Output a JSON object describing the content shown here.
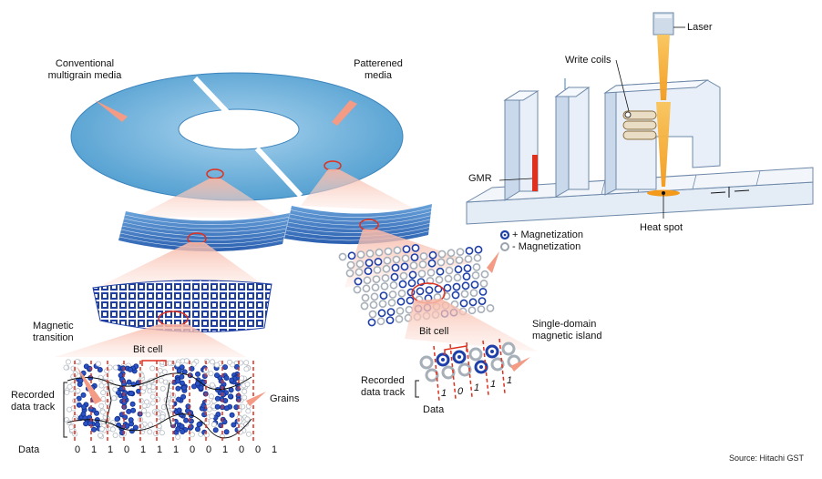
{
  "labels": {
    "conventional_media": "Conventional\nmultigrain media",
    "patterned_media": "Patterened\nmedia",
    "laser": "Laser",
    "write_coils": "Write coils",
    "gmr": "GMR",
    "heat_spot": "Heat spot",
    "legend_plus": "+ Magnetization",
    "legend_minus": "- Magnetization",
    "magnetic_transition": "Magnetic\ntransition",
    "bit_cell_left": "Bit cell",
    "recorded_track_left": "Recorded\ndata track",
    "grains": "Grains",
    "data_left": "Data",
    "bit_cell_right": "Bit cell",
    "single_domain_island": "Single-domain\nmagnetic island",
    "recorded_track_right": "Recorded\ndata track",
    "data_right": "Data",
    "source": "Source: Hitachi GST"
  },
  "data_bits_left": [
    "0",
    "1",
    "1",
    "0",
    "1",
    "1",
    "1",
    "0",
    "0",
    "1",
    "0",
    "0",
    "1"
  ],
  "data_bits_right": [
    "1",
    "0",
    "1",
    "1",
    "1"
  ],
  "colors": {
    "disk_blue": "#5ba7d6",
    "grain_blue": "#1e3fa8",
    "arrow_salmon": "#f39b84",
    "laser_orange": "#f5a623",
    "head_fill": "#e4ecf6",
    "red_dash": "#e0301e"
  }
}
